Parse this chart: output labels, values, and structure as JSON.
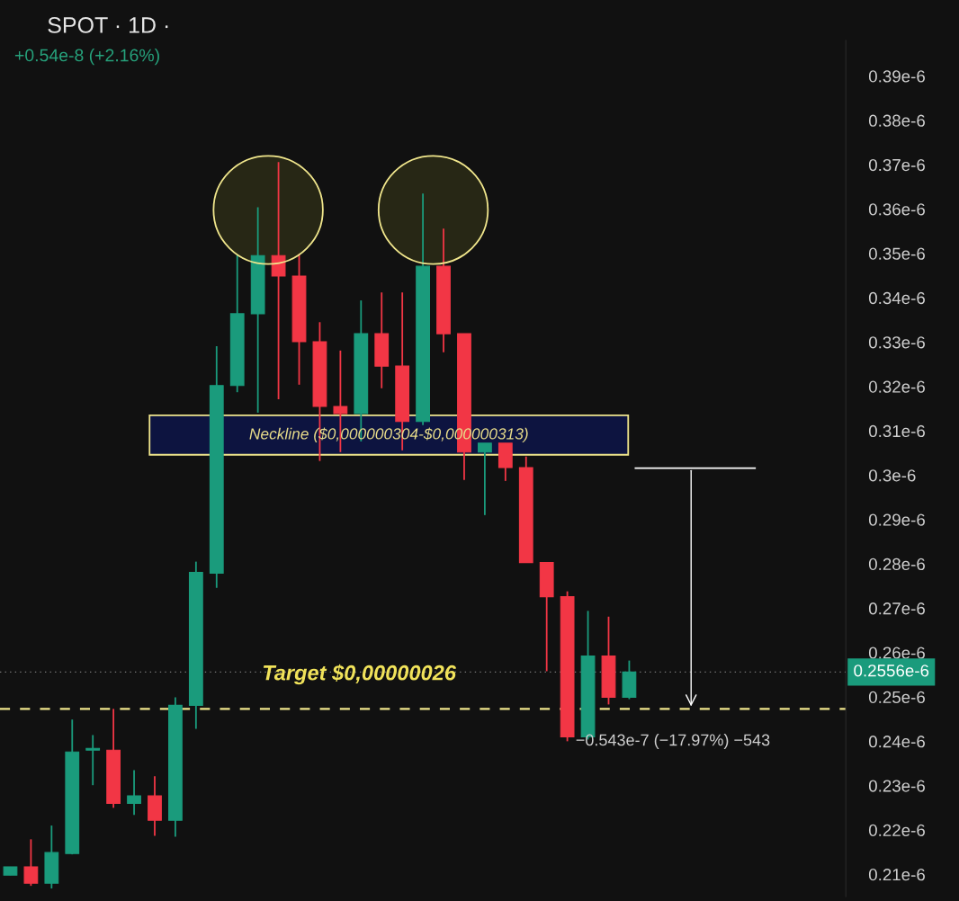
{
  "chart_data": {
    "type": "candlestick",
    "title": "SPOT · 1D ·",
    "subtitle": "+0.54e-8 (+2.16%)",
    "categories": [
      null,
      null,
      null,
      null,
      null,
      null,
      null,
      null,
      null,
      null,
      null,
      null,
      null,
      null,
      null,
      null,
      null,
      null,
      null,
      null,
      null,
      null,
      null,
      null,
      null,
      null,
      null,
      null,
      null,
      null,
      null,
      null,
      null,
      null,
      null,
      null,
      null,
      null,
      null,
      null,
      null
    ],
    "ohlc": [
      [
        2.098e-07,
        2.117e-07,
        2.098e-07,
        2.117e-07
      ],
      [
        2.117e-07,
        2.179e-07,
        2.074e-07,
        2.08e-07
      ],
      [
        2.08e-07,
        2.21e-07,
        2.068e-07,
        2.149e-07
      ],
      [
        2.147e-07,
        2.449e-07,
        2.145e-07,
        2.376e-07
      ],
      [
        2.38e-07,
        2.414e-07,
        2.301e-07,
        2.384e-07
      ],
      [
        2.38e-07,
        2.473e-07,
        2.25e-07,
        2.26e-07
      ],
      [
        2.26e-07,
        2.335e-07,
        2.234e-07,
        2.277e-07
      ],
      [
        2.277e-07,
        2.321e-07,
        2.187e-07,
        2.222e-07
      ],
      [
        2.222e-07,
        2.499e-07,
        2.185e-07,
        2.481e-07
      ],
      [
        2.481e-07,
        2.805e-07,
        2.428e-07,
        2.781e-07
      ],
      [
        2.779e-07,
        3.291e-07,
        2.746e-07,
        3.202e-07
      ],
      [
        3.202e-07,
        3.497e-07,
        3.187e-07,
        3.364e-07
      ],
      [
        3.364e-07,
        3.604e-07,
        3.141e-07,
        3.495e-07
      ],
      [
        3.495e-07,
        3.706e-07,
        3.171e-07,
        3.449e-07
      ],
      [
        3.449e-07,
        3.499e-07,
        3.204e-07,
        3.301e-07
      ],
      [
        3.301e-07,
        3.345e-07,
        3.032e-07,
        3.155e-07
      ],
      [
        3.155e-07,
        3.281e-07,
        3.052e-07,
        3.139e-07
      ],
      [
        3.139e-07,
        3.394e-07,
        3.076e-07,
        3.319e-07
      ],
      [
        3.319e-07,
        3.412e-07,
        3.196e-07,
        3.246e-07
      ],
      [
        3.246e-07,
        3.412e-07,
        3.056e-07,
        3.121e-07
      ],
      [
        3.121e-07,
        3.635e-07,
        3.113e-07,
        3.471e-07
      ],
      [
        3.471e-07,
        3.556e-07,
        3.277e-07,
        3.319e-07
      ],
      [
        3.319e-07,
        3.319e-07,
        2.989e-07,
        3.052e-07
      ],
      [
        3.052e-07,
        3.072e-07,
        2.91e-07,
        3.072e-07
      ],
      [
        3.072e-07,
        3.072e-07,
        2.987e-07,
        3.017e-07
      ],
      [
        3.017e-07,
        3.042e-07,
        2.803e-07,
        2.803e-07
      ],
      [
        2.803e-07,
        2.803e-07,
        2.558e-07,
        2.726e-07
      ],
      [
        2.726e-07,
        2.738e-07,
        2.4e-07,
        2.41e-07
      ],
      [
        2.41e-07,
        2.694e-07,
        2.404e-07,
        2.592e-07
      ],
      [
        2.592e-07,
        2.681e-07,
        2.483e-07,
        2.499e-07
      ],
      [
        2.499e-07,
        2.582e-07,
        2.495e-07,
        2.556e-07
      ],
      null,
      null,
      null,
      null,
      null,
      null,
      null,
      null,
      null,
      null
    ],
    "colors": [
      "#1a9b7c",
      "#f23645",
      "#1a9b7c",
      "#1a9b7c",
      "#1a9b7c",
      "#f23645",
      "#1a9b7c",
      "#f23645",
      "#1a9b7c",
      "#1a9b7c",
      "#1a9b7c",
      "#1a9b7c",
      "#1a9b7c",
      "#f23645",
      "#f23645",
      "#f23645",
      "#f23645",
      "#1a9b7c",
      "#f23645",
      "#f23645",
      "#1a9b7c",
      "#f23645",
      "#f23645",
      "#1a9b7c",
      "#f23645",
      "#f23645",
      "#f23645",
      "#f23645",
      "#1a9b7c",
      "#f23645",
      "#1a9b7c",
      null,
      null,
      null,
      null,
      null,
      null,
      null,
      null,
      null,
      null
    ],
    "ylim": [
      2.05e-07,
      3.98e-07
    ],
    "yticks": [
      {
        "value": 2.1e-07,
        "label": "0.21e-6"
      },
      {
        "value": 2.2e-07,
        "label": "0.22e-6"
      },
      {
        "value": 2.3e-07,
        "label": "0.23e-6"
      },
      {
        "value": 2.4e-07,
        "label": "0.24e-6"
      },
      {
        "value": 2.5e-07,
        "label": "0.25e-6"
      },
      {
        "value": 2.6e-07,
        "label": "0.26e-6"
      },
      {
        "value": 2.7e-07,
        "label": "0.27e-6"
      },
      {
        "value": 2.8e-07,
        "label": "0.28e-6"
      },
      {
        "value": 2.9e-07,
        "label": "0.29e-6"
      },
      {
        "value": 3e-07,
        "label": "0.3e-6"
      },
      {
        "value": 3.1e-07,
        "label": "0.31e-6"
      },
      {
        "value": 3.2e-07,
        "label": "0.32e-6"
      },
      {
        "value": 3.3e-07,
        "label": "0.33e-6"
      },
      {
        "value": 3.4e-07,
        "label": "0.34e-6"
      },
      {
        "value": 3.5e-07,
        "label": "0.35e-6"
      },
      {
        "value": 3.6e-07,
        "label": "0.36e-6"
      },
      {
        "value": 3.7e-07,
        "label": "0.37e-6"
      },
      {
        "value": 3.8e-07,
        "label": "0.38e-6"
      },
      {
        "value": 3.9e-07,
        "label": "0.39e-6"
      }
    ],
    "bands": [
      {
        "axis": "y",
        "from": 3.046e-07,
        "to": 3.135e-07,
        "label": "Neckline ($0,000000304-$0,000000313)",
        "color": "#0d1440"
      }
    ],
    "ref_lines": [
      {
        "axis": "y",
        "value": 2.556e-07,
        "label": "0.2556e-6",
        "color": "#777777",
        "line_style": "dotted"
      },
      {
        "axis": "y",
        "value": 2.473e-07,
        "label": "Target $0,00000026",
        "color": "#f0e68c",
        "line_style": "dashed"
      },
      {
        "axis": "y",
        "value": 3.016e-07,
        "label": null,
        "color": "#ffffff",
        "line_style": "solid"
      }
    ],
    "annotations": [
      "−0.543e-7 (−17.97%) −543"
    ],
    "grid": false,
    "legend": false
  }
}
